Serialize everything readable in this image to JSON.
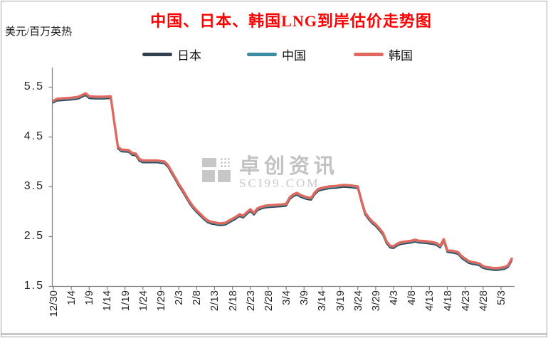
{
  "colors": {
    "title": "#ff0000",
    "axis": "#7f7f7f",
    "tick_text": "#262626",
    "japan": "#2f4050",
    "china": "#3a8ca3",
    "korea": "#e0685e",
    "watermark": "#b3b3b3",
    "frame_border": "#a6a6a6"
  },
  "watermark": {
    "text": "卓创资讯",
    "subtext": "SCI99.COM"
  },
  "chart_data": {
    "type": "line",
    "title": "中国、日本、韩国LNG到岸估价走势图",
    "unit_label": "美元/百万英热",
    "grid": false,
    "legend_position": "top",
    "ylim": [
      1.5,
      5.89
    ],
    "y_ticks": [
      5.5,
      4.5,
      3.5,
      2.5,
      1.5
    ],
    "x_tick_labels": [
      "12/30",
      "1/4",
      "1/9",
      "1/14",
      "1/19",
      "1/24",
      "1/29",
      "2/3",
      "2/8",
      "2/13",
      "2/18",
      "2/23",
      "2/28",
      "3/4",
      "3/9",
      "3/14",
      "3/19",
      "3/24",
      "3/29",
      "4/3",
      "4/8",
      "4/13",
      "4/18",
      "4/23",
      "4/28",
      "5/3"
    ],
    "x": [
      "12/30",
      "12/31",
      "1/2",
      "1/4",
      "1/6",
      "1/8",
      "1/9",
      "1/11",
      "1/13",
      "1/15",
      "1/16",
      "1/17",
      "1/18",
      "1/20",
      "1/21",
      "1/22",
      "1/23",
      "1/24",
      "1/26",
      "1/28",
      "1/30",
      "1/31",
      "2/1",
      "2/2",
      "2/3",
      "2/4",
      "2/5",
      "2/6",
      "2/7",
      "2/8",
      "2/9",
      "2/10",
      "2/11",
      "2/12",
      "2/13",
      "2/14",
      "2/15",
      "2/16",
      "2/17",
      "2/18",
      "2/19",
      "2/20",
      "2/21",
      "2/22",
      "2/23",
      "2/24",
      "2/25",
      "2/26",
      "2/27",
      "2/28",
      "3/1",
      "3/3",
      "3/4",
      "3/5",
      "3/6",
      "3/7",
      "3/8",
      "3/9",
      "3/10",
      "3/11",
      "3/12",
      "3/13",
      "3/14",
      "3/16",
      "3/18",
      "3/20",
      "3/22",
      "3/24",
      "3/25",
      "3/26",
      "3/27",
      "3/28",
      "3/29",
      "3/30",
      "3/31",
      "4/1",
      "4/2",
      "4/3",
      "4/4",
      "4/5",
      "4/6",
      "4/7",
      "4/8",
      "4/9",
      "4/10",
      "4/12",
      "4/13",
      "4/14",
      "4/15",
      "4/16",
      "4/17",
      "4/18",
      "4/19",
      "4/20",
      "4/21",
      "4/22",
      "4/23",
      "4/24",
      "4/25",
      "4/26",
      "4/27",
      "4/28",
      "4/29",
      "4/30",
      "5/1",
      "5/2",
      "5/3",
      "5/4",
      "5/5",
      "5/6"
    ],
    "series": [
      {
        "key": "japan",
        "name": "日本",
        "color": "#2f4050",
        "values": [
          5.18,
          5.22,
          5.23,
          5.24,
          5.26,
          5.33,
          5.27,
          5.26,
          5.26,
          5.27,
          4.76,
          4.26,
          4.2,
          4.19,
          4.13,
          4.12,
          4.01,
          3.98,
          3.98,
          3.98,
          3.96,
          3.89,
          3.76,
          3.64,
          3.51,
          3.4,
          3.28,
          3.16,
          3.06,
          2.98,
          2.91,
          2.84,
          2.78,
          2.75,
          2.74,
          2.72,
          2.72,
          2.73,
          2.77,
          2.81,
          2.85,
          2.9,
          2.87,
          2.94,
          3.0,
          2.93,
          3.02,
          3.05,
          3.07,
          3.08,
          3.09,
          3.1,
          3.11,
          3.24,
          3.3,
          3.33,
          3.29,
          3.26,
          3.24,
          3.23,
          3.34,
          3.41,
          3.43,
          3.46,
          3.47,
          3.49,
          3.48,
          3.46,
          3.18,
          2.94,
          2.84,
          2.76,
          2.7,
          2.62,
          2.53,
          2.36,
          2.27,
          2.26,
          2.31,
          2.34,
          2.35,
          2.36,
          2.37,
          2.39,
          2.37,
          2.36,
          2.35,
          2.34,
          2.32,
          2.27,
          2.4,
          2.18,
          2.17,
          2.16,
          2.14,
          2.06,
          2.01,
          1.96,
          1.94,
          1.93,
          1.91,
          1.86,
          1.84,
          1.83,
          1.82,
          1.82,
          1.83,
          1.84,
          1.88,
          2.01
        ]
      },
      {
        "key": "china",
        "name": "中国",
        "color": "#3a8ca3",
        "values": [
          5.2,
          5.24,
          5.25,
          5.26,
          5.28,
          5.35,
          5.29,
          5.28,
          5.28,
          5.29,
          4.78,
          4.28,
          4.22,
          4.21,
          4.15,
          4.14,
          4.03,
          4.0,
          4.0,
          4.0,
          3.98,
          3.91,
          3.78,
          3.66,
          3.53,
          3.42,
          3.3,
          3.18,
          3.08,
          3.0,
          2.93,
          2.86,
          2.8,
          2.77,
          2.76,
          2.74,
          2.74,
          2.75,
          2.79,
          2.83,
          2.87,
          2.92,
          2.89,
          2.96,
          3.02,
          2.95,
          3.04,
          3.07,
          3.09,
          3.1,
          3.11,
          3.12,
          3.13,
          3.26,
          3.32,
          3.35,
          3.31,
          3.28,
          3.26,
          3.25,
          3.36,
          3.43,
          3.45,
          3.48,
          3.49,
          3.51,
          3.5,
          3.48,
          3.2,
          2.96,
          2.86,
          2.78,
          2.72,
          2.64,
          2.55,
          2.38,
          2.29,
          2.28,
          2.33,
          2.36,
          2.37,
          2.38,
          2.39,
          2.41,
          2.39,
          2.38,
          2.37,
          2.36,
          2.34,
          2.29,
          2.42,
          2.2,
          2.19,
          2.18,
          2.16,
          2.08,
          2.03,
          1.98,
          1.96,
          1.95,
          1.93,
          1.88,
          1.86,
          1.85,
          1.84,
          1.84,
          1.85,
          1.86,
          1.9,
          2.03
        ]
      },
      {
        "key": "korea",
        "name": "韩国",
        "color": "#e0685e",
        "values": [
          5.22,
          5.26,
          5.27,
          5.28,
          5.3,
          5.37,
          5.31,
          5.3,
          5.3,
          5.31,
          4.8,
          4.3,
          4.24,
          4.23,
          4.17,
          4.16,
          4.05,
          4.02,
          4.02,
          4.02,
          4.0,
          3.93,
          3.8,
          3.68,
          3.55,
          3.44,
          3.32,
          3.2,
          3.1,
          3.02,
          2.95,
          2.88,
          2.82,
          2.79,
          2.78,
          2.76,
          2.76,
          2.77,
          2.81,
          2.85,
          2.89,
          2.94,
          2.91,
          2.98,
          3.04,
          2.97,
          3.06,
          3.09,
          3.11,
          3.12,
          3.13,
          3.14,
          3.15,
          3.28,
          3.34,
          3.37,
          3.33,
          3.3,
          3.28,
          3.27,
          3.38,
          3.45,
          3.47,
          3.5,
          3.51,
          3.53,
          3.52,
          3.5,
          3.22,
          2.98,
          2.88,
          2.8,
          2.74,
          2.66,
          2.57,
          2.4,
          2.31,
          2.3,
          2.35,
          2.38,
          2.39,
          2.4,
          2.41,
          2.43,
          2.41,
          2.4,
          2.39,
          2.38,
          2.36,
          2.31,
          2.44,
          2.22,
          2.21,
          2.2,
          2.18,
          2.1,
          2.05,
          2.0,
          1.98,
          1.97,
          1.95,
          1.9,
          1.88,
          1.87,
          1.86,
          1.86,
          1.87,
          1.88,
          1.92,
          2.05
        ]
      }
    ]
  }
}
